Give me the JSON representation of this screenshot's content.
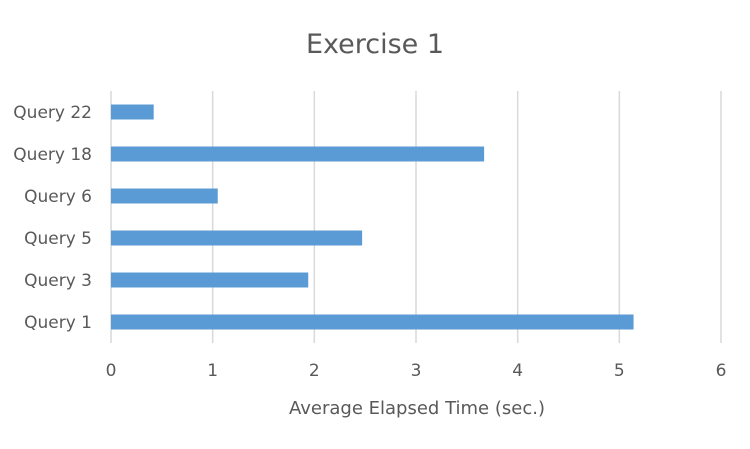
{
  "chart_data": {
    "type": "bar",
    "orientation": "horizontal",
    "title": "Exercise 1",
    "xlabel": "Average Elapsed Time (sec.)",
    "ylabel": "",
    "categories": [
      "Query 22",
      "Query 18",
      "Query 6",
      "Query 5",
      "Query 3",
      "Query 1"
    ],
    "values": [
      0.42,
      3.67,
      1.05,
      2.47,
      1.94,
      5.14
    ],
    "xlim": [
      0,
      6
    ],
    "xticks": [
      "0",
      "1",
      "2",
      "3",
      "4",
      "5",
      "6"
    ],
    "grid": true,
    "legend": "none",
    "bar_color": "#5b9bd5"
  }
}
